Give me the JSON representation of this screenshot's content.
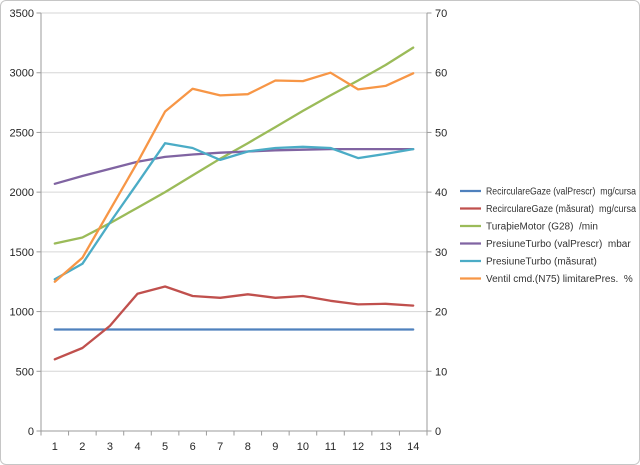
{
  "chart_data": {
    "type": "line",
    "title": "",
    "xlabel": "",
    "ylabel": "",
    "grid": true,
    "legend_position": "right",
    "x_labels": [
      "1",
      "2",
      "3",
      "4",
      "5",
      "6",
      "7",
      "8",
      "9",
      "10",
      "11",
      "12",
      "13",
      "14"
    ],
    "left_axis": {
      "min": 0,
      "max": 3500,
      "step": 500,
      "tick_labels": [
        "0",
        "500",
        "1000",
        "1500",
        "2000",
        "2500",
        "3000",
        "3500"
      ]
    },
    "right_axis": {
      "min": 0,
      "max": 70,
      "step": 10,
      "tick_labels": [
        "0",
        "10",
        "20",
        "30",
        "40",
        "50",
        "60",
        "70"
      ]
    },
    "series": [
      {
        "name": "RecirculareGaze (valPrescr)  mg/cursa",
        "color": "#4F81BD",
        "axis": "left",
        "values": [
          850,
          850,
          850,
          850,
          850,
          850,
          850,
          850,
          850,
          850,
          850,
          850,
          850,
          850
        ]
      },
      {
        "name": "RecirculareGaze (măsurat)  mg/cursa",
        "color": "#C0504D",
        "axis": "left",
        "values": [
          600,
          695,
          880,
          1150,
          1210,
          1130,
          1115,
          1145,
          1115,
          1130,
          1090,
          1060,
          1065,
          1050
        ]
      },
      {
        "name": "TuraþieMotor (G28)  /min",
        "color": "#9BBB59",
        "axis": "left",
        "values": [
          1570,
          1620,
          1740,
          1870,
          2000,
          2140,
          2280,
          2410,
          2545,
          2680,
          2810,
          2935,
          3065,
          3210
        ]
      },
      {
        "name": "PresiuneTurbo (valPrescr)  mbar",
        "color": "#8064A2",
        "axis": "left",
        "values": [
          2070,
          2135,
          2195,
          2255,
          2295,
          2315,
          2330,
          2340,
          2350,
          2355,
          2360,
          2360,
          2360,
          2360
        ]
      },
      {
        "name": "PresiuneTurbo (măsurat)",
        "color": "#4BACC6",
        "axis": "left",
        "values": [
          1270,
          1400,
          1745,
          2075,
          2410,
          2370,
          2270,
          2340,
          2370,
          2380,
          2370,
          2285,
          2320,
          2360
        ]
      },
      {
        "name": "Ventil cmd.(N75) limitarePres.  %",
        "color": "#F79646",
        "axis": "right",
        "values": [
          25,
          29,
          37,
          45,
          53.5,
          57.3,
          56.2,
          56.4,
          58.7,
          58.6,
          60,
          57.2,
          57.8,
          59.9
        ]
      }
    ],
    "style_colors": {
      "grid": "#D6D6D6",
      "axis": "#9B9B9B",
      "tick_label": "#262626",
      "legend_text": "#333333"
    }
  }
}
